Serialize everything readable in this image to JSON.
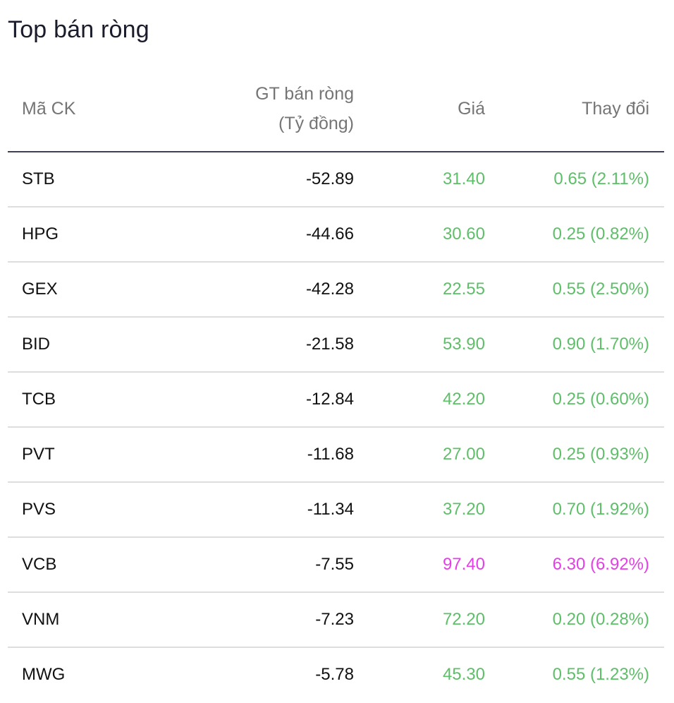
{
  "title": "Top bán ròng",
  "headers": {
    "symbol": "Mã CK",
    "net_value_line1": "GT bán ròng",
    "net_value_line2": "(Tỷ đồng)",
    "price": "Giá",
    "change": "Thay đổi"
  },
  "colors": {
    "up": "#5dbf68",
    "ceiling": "#e53ee8"
  },
  "rows": [
    {
      "symbol": "STB",
      "net_value": "-52.89",
      "price": "31.40",
      "change": "0.65 (2.11%)",
      "status": "up"
    },
    {
      "symbol": "HPG",
      "net_value": "-44.66",
      "price": "30.60",
      "change": "0.25 (0.82%)",
      "status": "up"
    },
    {
      "symbol": "GEX",
      "net_value": "-42.28",
      "price": "22.55",
      "change": "0.55 (2.50%)",
      "status": "up"
    },
    {
      "symbol": "BID",
      "net_value": "-21.58",
      "price": "53.90",
      "change": "0.90 (1.70%)",
      "status": "up"
    },
    {
      "symbol": "TCB",
      "net_value": "-12.84",
      "price": "42.20",
      "change": "0.25 (0.60%)",
      "status": "up"
    },
    {
      "symbol": "PVT",
      "net_value": "-11.68",
      "price": "27.00",
      "change": "0.25 (0.93%)",
      "status": "up"
    },
    {
      "symbol": "PVS",
      "net_value": "-11.34",
      "price": "37.20",
      "change": "0.70 (1.92%)",
      "status": "up"
    },
    {
      "symbol": "VCB",
      "net_value": "-7.55",
      "price": "97.40",
      "change": "6.30 (6.92%)",
      "status": "ceiling"
    },
    {
      "symbol": "VNM",
      "net_value": "-7.23",
      "price": "72.20",
      "change": "0.20 (0.28%)",
      "status": "up"
    },
    {
      "symbol": "MWG",
      "net_value": "-5.78",
      "price": "45.30",
      "change": "0.55 (1.23%)",
      "status": "up"
    }
  ]
}
